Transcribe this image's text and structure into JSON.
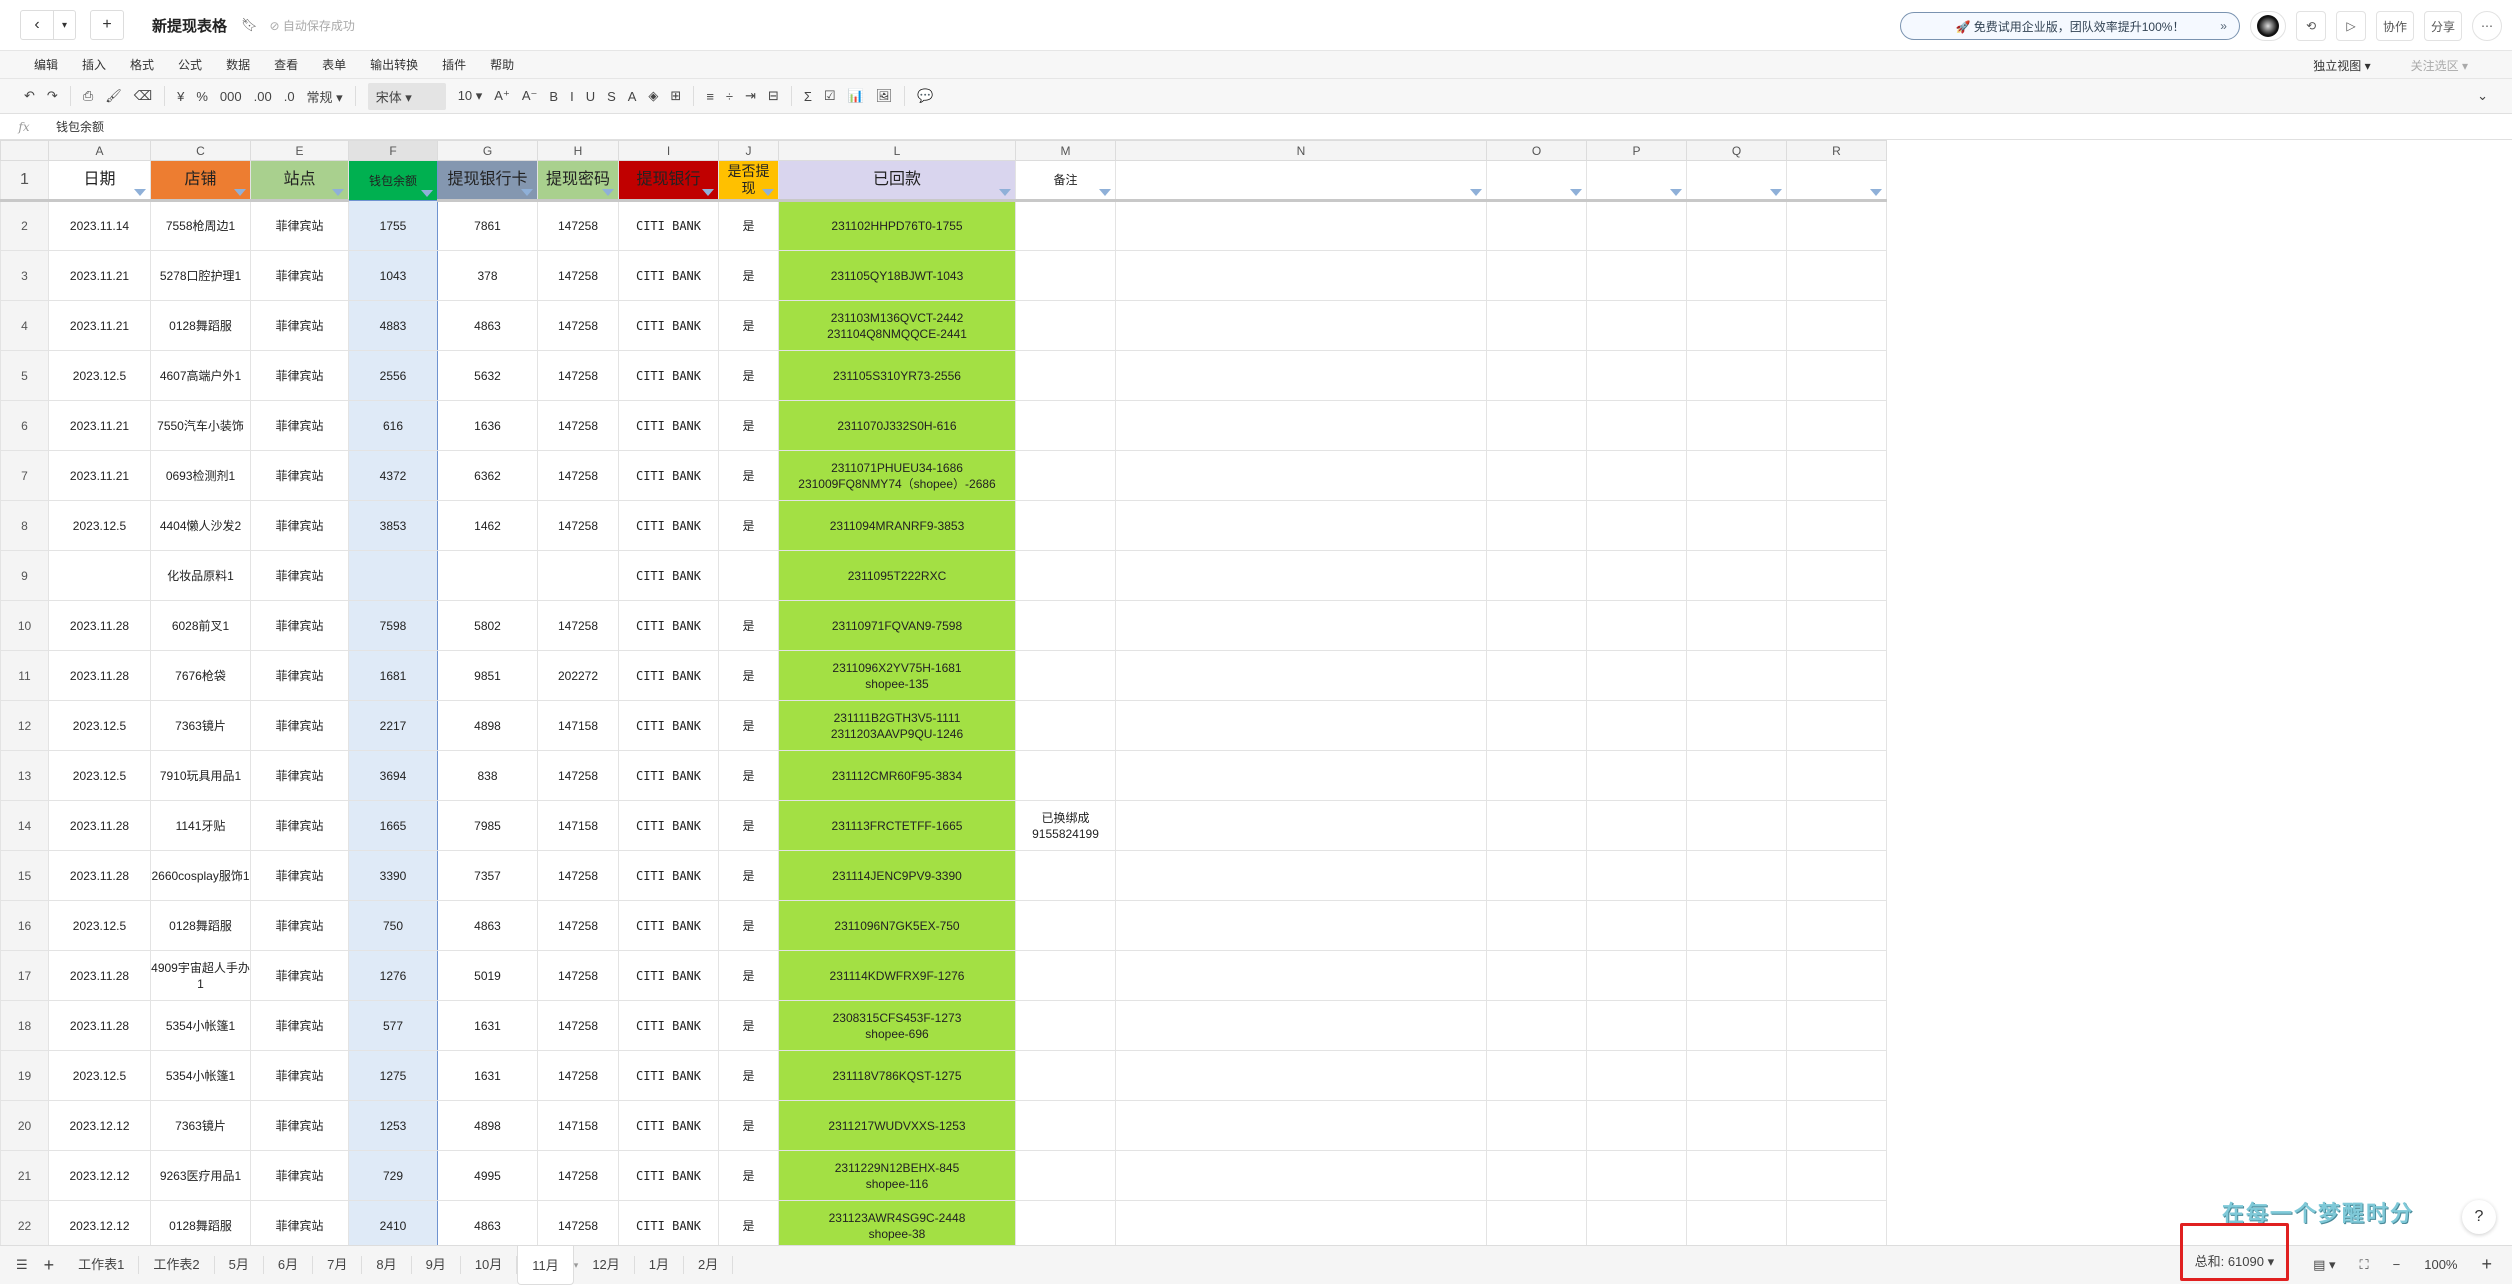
{
  "titlebar": {
    "back": "‹",
    "dropdown": "▾",
    "new": "+",
    "title": "新提现表格",
    "bookmark_icon": "bookmark-icon",
    "saved": "⊘ 自动保存成功",
    "promo": "🚀 免费试用企业版，团队效率提升100%！",
    "promo_chevron": "»",
    "history_icon": "⟲",
    "play_icon": "▷",
    "collab": "协作",
    "share": "分享",
    "more": "⋯"
  },
  "menu": [
    "编辑",
    "插入",
    "格式",
    "公式",
    "数据",
    "查看",
    "表单",
    "输出转换",
    "插件",
    "帮助"
  ],
  "menu_right": {
    "view": "独立视图 ▾",
    "focus": "关注选区 ▾"
  },
  "toolbar": {
    "undo": "↶",
    "redo": "↷",
    "print": "⎙",
    "paint": "🖌",
    "clear": "⌫",
    "currency": "¥",
    "percent": "%",
    "thousands": "000",
    "dec_add": ".00",
    "dec_remove": ".0",
    "format": "常规 ▾",
    "font": "宋体 ▾",
    "size": "10 ▾",
    "grow": "A⁺",
    "shrink": "A⁻",
    "bold": "B",
    "italic": "I",
    "underline": "U",
    "strike": "S",
    "color": "A",
    "fill": "◈",
    "border": "⊞",
    "align": "≡",
    "valign": "÷",
    "wrap": "⇥",
    "merge": "⊟",
    "sum": "Σ",
    "check": "☑",
    "chart": "📊",
    "image": "🖼",
    "comment": "💬",
    "collapse": "⌄"
  },
  "formula_bar": {
    "fx": "fx",
    "value": "钱包余额"
  },
  "columns": [
    "A",
    "C",
    "E",
    "F",
    "G",
    "H",
    "I",
    "J",
    "L",
    "M",
    "N",
    "O",
    "P",
    "Q",
    "R"
  ],
  "colors": {
    "A": "#ffffff",
    "C": "#ed7d31",
    "E": "#a9d08e",
    "F": "#00b050",
    "G": "#8497b0",
    "H": "#a9d08e",
    "I": "#c00000",
    "J": "#ffc000",
    "L": "#d9d5ee",
    "M": "#ffffff",
    "paid": "#a3e044"
  },
  "headers": [
    "日期",
    "店铺",
    "站点",
    "钱包余额",
    "提现银行卡",
    "提现密码",
    "提现银行",
    "是否提\n现",
    "已回款",
    "备注",
    "",
    "",
    "",
    "",
    ""
  ],
  "rows": [
    [
      "2023.11.14",
      "7558枪周边1",
      "菲律宾站",
      "1755",
      "7861",
      "147258",
      "CITI BANK",
      "是",
      "231102HHPD76T0-1755",
      ""
    ],
    [
      "2023.11.21",
      "5278口腔护理1",
      "菲律宾站",
      "1043",
      "378",
      "147258",
      "CITI BANK",
      "是",
      "231105QY18BJWT-1043",
      ""
    ],
    [
      "2023.11.21",
      "0128舞蹈服",
      "菲律宾站",
      "4883",
      "4863",
      "147258",
      "CITI BANK",
      "是",
      "231103M136QVCT-2442\n231104Q8NMQQCE-2441",
      ""
    ],
    [
      "2023.12.5",
      "4607高端户外1",
      "菲律宾站",
      "2556",
      "5632",
      "147258",
      "CITI BANK",
      "是",
      "231105S310YR73-2556",
      ""
    ],
    [
      "2023.11.21",
      "7550汽车小装饰",
      "菲律宾站",
      "616",
      "1636",
      "147258",
      "CITI BANK",
      "是",
      "2311070J332S0H-616",
      ""
    ],
    [
      "2023.11.21",
      "0693检测剂1",
      "菲律宾站",
      "4372",
      "6362",
      "147258",
      "CITI BANK",
      "是",
      "2311071PHUEU34-1686\n231009FQ8NMY74（shopee）-2686",
      ""
    ],
    [
      "2023.12.5",
      "4404懒人沙发2",
      "菲律宾站",
      "3853",
      "1462",
      "147258",
      "CITI BANK",
      "是",
      "2311094MRANRF9-3853",
      ""
    ],
    [
      "",
      "化妆品原料1",
      "菲律宾站",
      "",
      "",
      "",
      "CITI BANK",
      "",
      "2311095T222RXC",
      ""
    ],
    [
      "2023.11.28",
      "6028前叉1",
      "菲律宾站",
      "7598",
      "5802",
      "147258",
      "CITI BANK",
      "是",
      "23110971FQVAN9-7598",
      ""
    ],
    [
      "2023.11.28",
      "7676枪袋",
      "菲律宾站",
      "1681",
      "9851",
      "202272",
      "CITI BANK",
      "是",
      "2311096X2YV75H-1681\nshopee-135",
      ""
    ],
    [
      "2023.12.5",
      "7363镜片",
      "菲律宾站",
      "2217",
      "4898",
      "147158",
      "CITI BANK",
      "是",
      "231111B2GTH3V5-1111\n2311203AAVP9QU-1246",
      ""
    ],
    [
      "2023.12.5",
      "7910玩具用品1",
      "菲律宾站",
      "3694",
      "838",
      "147258",
      "CITI BANK",
      "是",
      "231112CMR60F95-3834",
      ""
    ],
    [
      "2023.11.28",
      "1141牙贴",
      "菲律宾站",
      "1665",
      "7985",
      "147158",
      "CITI BANK",
      "是",
      "231113FRCTETFF-1665",
      "已换绑成\n9155824199"
    ],
    [
      "2023.11.28",
      "2660cosplay服饰1",
      "菲律宾站",
      "3390",
      "7357",
      "147258",
      "CITI BANK",
      "是",
      "231114JENC9PV9-3390",
      ""
    ],
    [
      "2023.12.5",
      "0128舞蹈服",
      "菲律宾站",
      "750",
      "4863",
      "147258",
      "CITI BANK",
      "是",
      "2311096N7GK5EX-750",
      ""
    ],
    [
      "2023.11.28",
      "4909宇宙超人手办1",
      "菲律宾站",
      "1276",
      "5019",
      "147258",
      "CITI BANK",
      "是",
      "231114KDWFRX9F-1276",
      ""
    ],
    [
      "2023.11.28",
      "5354小帐篷1",
      "菲律宾站",
      "577",
      "1631",
      "147258",
      "CITI BANK",
      "是",
      "2308315CFS453F-1273\nshopee-696",
      ""
    ],
    [
      "2023.12.5",
      "5354小帐篷1",
      "菲律宾站",
      "1275",
      "1631",
      "147258",
      "CITI BANK",
      "是",
      "231118V786KQST-1275",
      ""
    ],
    [
      "2023.12.12",
      "7363镜片",
      "菲律宾站",
      "1253",
      "4898",
      "147158",
      "CITI BANK",
      "是",
      "2311217WUDVXXS-1253",
      ""
    ],
    [
      "2023.12.12",
      "9263医疗用品1",
      "菲律宾站",
      "729",
      "4995",
      "147258",
      "CITI BANK",
      "是",
      "2311229N12BEHX-845\nshopee-116",
      ""
    ],
    [
      "2023.12.12",
      "0128舞蹈服",
      "菲律宾站",
      "2410",
      "4863",
      "147258",
      "CITI BANK",
      "是",
      "231123AWR4SG9C-2448\nshopee-38",
      ""
    ]
  ],
  "sheets": {
    "list_icon": "☰",
    "add": "+",
    "tabs": [
      "工作表1",
      "工作表2",
      "5月",
      "6月",
      "7月",
      "8月",
      "9月",
      "10月",
      "11月",
      "12月",
      "1月",
      "2月"
    ],
    "active": "11月"
  },
  "status": {
    "sum": "总和: 61090 ▾",
    "view_icon": "▤ ▾",
    "fit_icon": "⛶",
    "zoom_out": "−",
    "zoom": "100%",
    "zoom_in": "+",
    "help": "?"
  },
  "watermark": "在每一个梦醒时分"
}
